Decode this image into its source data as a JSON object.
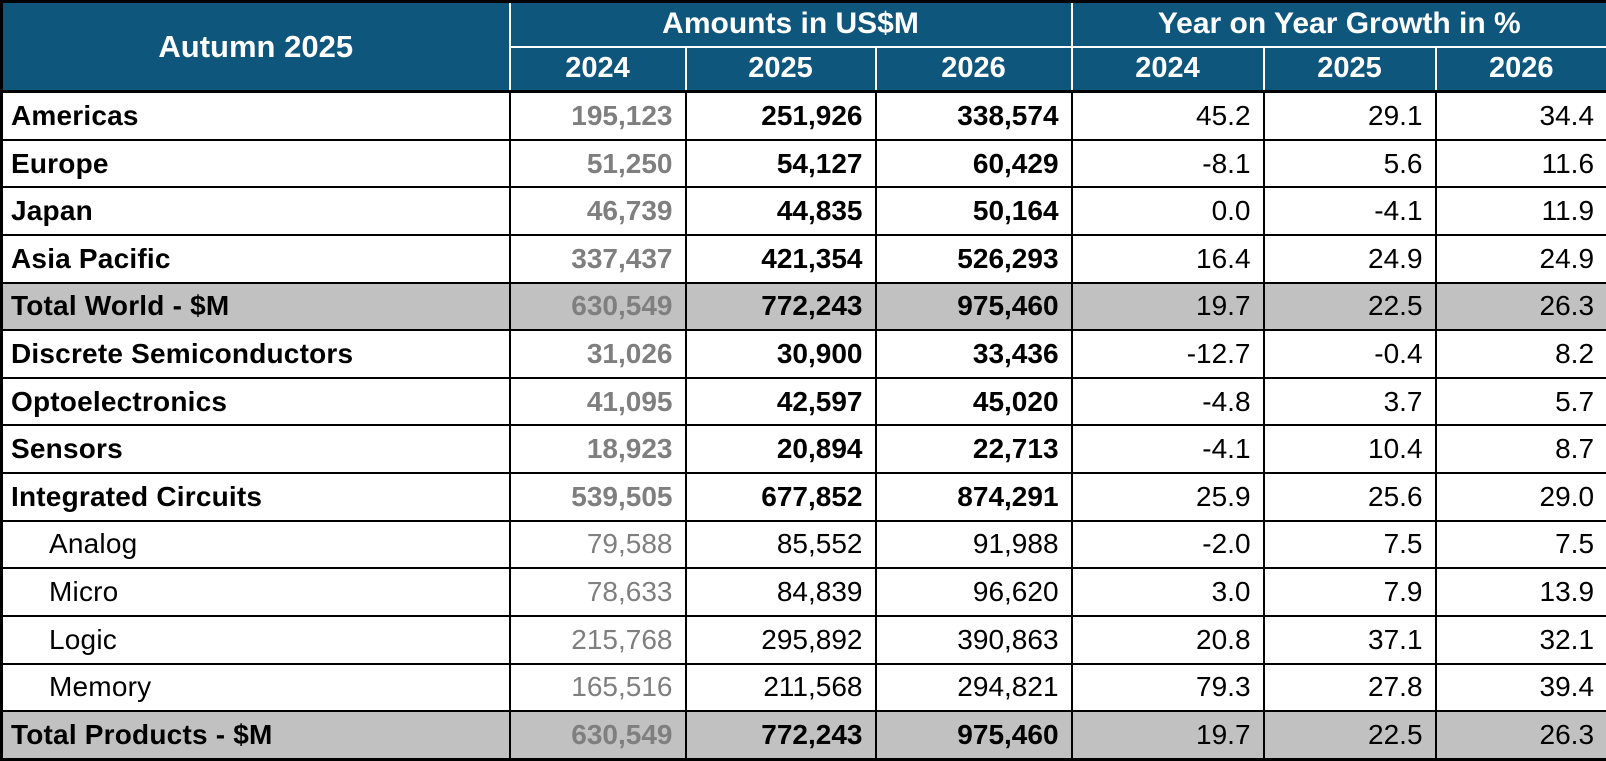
{
  "title": "Autumn 2025",
  "header": {
    "amounts_group": "Amounts in US$M",
    "growth_group": "Year on Year Growth in %",
    "years": [
      "2024",
      "2025",
      "2026"
    ]
  },
  "colors": {
    "header_bg": "#0E567C",
    "header_text": "#FFFFFF",
    "total_row_bg": "#C1C1C1",
    "muted_2024_text": "#7F7F7F",
    "text": "#000000"
  },
  "rows": [
    {
      "label": "Americas",
      "indent": false,
      "bold": true,
      "total": false,
      "amounts": [
        "195,123",
        "251,926",
        "338,574"
      ],
      "growth": [
        "45.2",
        "29.1",
        "34.4"
      ]
    },
    {
      "label": "Europe",
      "indent": false,
      "bold": true,
      "total": false,
      "amounts": [
        "51,250",
        "54,127",
        "60,429"
      ],
      "growth": [
        "-8.1",
        "5.6",
        "11.6"
      ]
    },
    {
      "label": "Japan",
      "indent": false,
      "bold": true,
      "total": false,
      "amounts": [
        "46,739",
        "44,835",
        "50,164"
      ],
      "growth": [
        "0.0",
        "-4.1",
        "11.9"
      ]
    },
    {
      "label": "Asia Pacific",
      "indent": false,
      "bold": true,
      "total": false,
      "amounts": [
        "337,437",
        "421,354",
        "526,293"
      ],
      "growth": [
        "16.4",
        "24.9",
        "24.9"
      ]
    },
    {
      "label": "Total World - $M",
      "indent": false,
      "bold": true,
      "total": true,
      "amounts": [
        "630,549",
        "772,243",
        "975,460"
      ],
      "growth": [
        "19.7",
        "22.5",
        "26.3"
      ]
    },
    {
      "label": "Discrete Semiconductors",
      "indent": false,
      "bold": true,
      "total": false,
      "amounts": [
        "31,026",
        "30,900",
        "33,436"
      ],
      "growth": [
        "-12.7",
        "-0.4",
        "8.2"
      ]
    },
    {
      "label": "Optoelectronics",
      "indent": false,
      "bold": true,
      "total": false,
      "amounts": [
        "41,095",
        "42,597",
        "45,020"
      ],
      "growth": [
        "-4.8",
        "3.7",
        "5.7"
      ]
    },
    {
      "label": "Sensors",
      "indent": false,
      "bold": true,
      "total": false,
      "amounts": [
        "18,923",
        "20,894",
        "22,713"
      ],
      "growth": [
        "-4.1",
        "10.4",
        "8.7"
      ]
    },
    {
      "label": "Integrated Circuits",
      "indent": false,
      "bold": true,
      "total": false,
      "amounts": [
        "539,505",
        "677,852",
        "874,291"
      ],
      "growth": [
        "25.9",
        "25.6",
        "29.0"
      ]
    },
    {
      "label": "Analog",
      "indent": true,
      "bold": false,
      "total": false,
      "amounts": [
        "79,588",
        "85,552",
        "91,988"
      ],
      "growth": [
        "-2.0",
        "7.5",
        "7.5"
      ]
    },
    {
      "label": "Micro",
      "indent": true,
      "bold": false,
      "total": false,
      "amounts": [
        "78,633",
        "84,839",
        "96,620"
      ],
      "growth": [
        "3.0",
        "7.9",
        "13.9"
      ]
    },
    {
      "label": "Logic",
      "indent": true,
      "bold": false,
      "total": false,
      "amounts": [
        "215,768",
        "295,892",
        "390,863"
      ],
      "growth": [
        "20.8",
        "37.1",
        "32.1"
      ]
    },
    {
      "label": "Memory",
      "indent": true,
      "bold": false,
      "total": false,
      "amounts": [
        "165,516",
        "211,568",
        "294,821"
      ],
      "growth": [
        "79.3",
        "27.8",
        "39.4"
      ]
    },
    {
      "label": "Total Products - $M",
      "indent": false,
      "bold": true,
      "total": true,
      "amounts": [
        "630,549",
        "772,243",
        "975,460"
      ],
      "growth": [
        "19.7",
        "22.5",
        "26.3"
      ]
    }
  ],
  "chart_data": {
    "type": "table",
    "title": "Autumn 2025",
    "column_groups": [
      "Amounts in US$M",
      "Year on Year Growth in %"
    ],
    "years": [
      2024,
      2025,
      2026
    ],
    "rows": [
      {
        "label": "Americas",
        "amounts_usd_m": [
          195123,
          251926,
          338574
        ],
        "yoy_growth_pct": [
          45.2,
          29.1,
          34.4
        ]
      },
      {
        "label": "Europe",
        "amounts_usd_m": [
          51250,
          54127,
          60429
        ],
        "yoy_growth_pct": [
          -8.1,
          5.6,
          11.6
        ]
      },
      {
        "label": "Japan",
        "amounts_usd_m": [
          46739,
          44835,
          50164
        ],
        "yoy_growth_pct": [
          0.0,
          -4.1,
          11.9
        ]
      },
      {
        "label": "Asia Pacific",
        "amounts_usd_m": [
          337437,
          421354,
          526293
        ],
        "yoy_growth_pct": [
          16.4,
          24.9,
          24.9
        ]
      },
      {
        "label": "Total World - $M",
        "amounts_usd_m": [
          630549,
          772243,
          975460
        ],
        "yoy_growth_pct": [
          19.7,
          22.5,
          26.3
        ]
      },
      {
        "label": "Discrete Semiconductors",
        "amounts_usd_m": [
          31026,
          30900,
          33436
        ],
        "yoy_growth_pct": [
          -12.7,
          -0.4,
          8.2
        ]
      },
      {
        "label": "Optoelectronics",
        "amounts_usd_m": [
          41095,
          42597,
          45020
        ],
        "yoy_growth_pct": [
          -4.8,
          3.7,
          5.7
        ]
      },
      {
        "label": "Sensors",
        "amounts_usd_m": [
          18923,
          20894,
          22713
        ],
        "yoy_growth_pct": [
          -4.1,
          10.4,
          8.7
        ]
      },
      {
        "label": "Integrated Circuits",
        "amounts_usd_m": [
          539505,
          677852,
          874291
        ],
        "yoy_growth_pct": [
          25.9,
          25.6,
          29.0
        ]
      },
      {
        "label": "Analog",
        "amounts_usd_m": [
          79588,
          85552,
          91988
        ],
        "yoy_growth_pct": [
          -2.0,
          7.5,
          7.5
        ]
      },
      {
        "label": "Micro",
        "amounts_usd_m": [
          78633,
          84839,
          96620
        ],
        "yoy_growth_pct": [
          3.0,
          7.9,
          13.9
        ]
      },
      {
        "label": "Logic",
        "amounts_usd_m": [
          215768,
          295892,
          390863
        ],
        "yoy_growth_pct": [
          20.8,
          37.1,
          32.1
        ]
      },
      {
        "label": "Memory",
        "amounts_usd_m": [
          165516,
          211568,
          294821
        ],
        "yoy_growth_pct": [
          79.3,
          27.8,
          39.4
        ]
      },
      {
        "label": "Total Products - $M",
        "amounts_usd_m": [
          630549,
          772243,
          975460
        ],
        "yoy_growth_pct": [
          19.7,
          22.5,
          26.3
        ]
      }
    ]
  }
}
